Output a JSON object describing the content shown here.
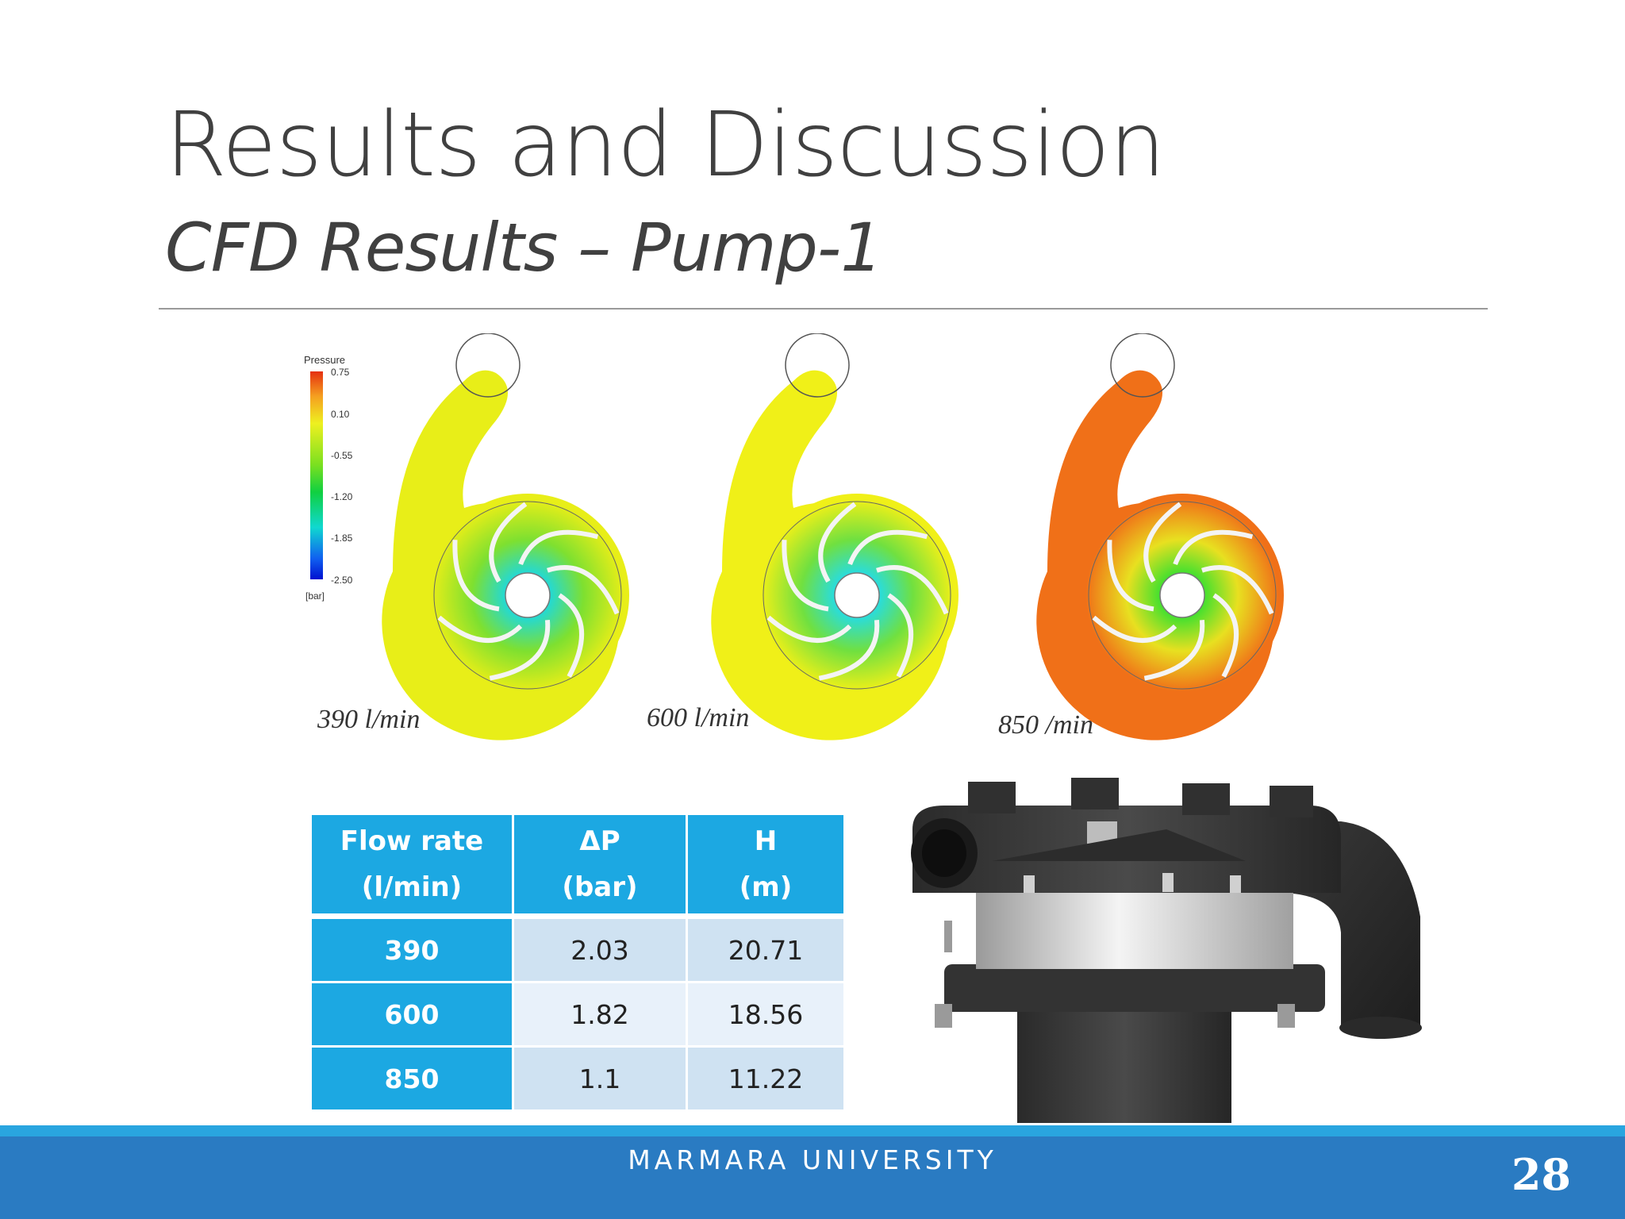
{
  "slide": {
    "title": "Results and Discussion",
    "subtitle": "CFD Results – Pump-1",
    "page_number": "28"
  },
  "cfd_figure": {
    "legend_title": "Pressure",
    "legend_ticks": [
      "0.75",
      "0.10",
      "-0.55",
      "-1.20",
      "-1.85",
      "-2.50"
    ],
    "legend_unit": "[bar]",
    "panels": [
      {
        "label": "390 l/min",
        "pressure_level": "low",
        "outer_color": "#e8ee18",
        "mid_color": "#7ee030",
        "inner_color": "#18d8e8"
      },
      {
        "label": "600 l/min",
        "pressure_level": "medium",
        "outer_color": "#f0f018",
        "mid_color": "#70e040",
        "inner_color": "#20dcf0"
      },
      {
        "label": "850 /min",
        "pressure_level": "high",
        "outer_color": "#f07018",
        "mid_color": "#e8e020",
        "inner_color": "#30e030"
      }
    ]
  },
  "table": {
    "headers": [
      {
        "line1": "Flow rate",
        "line2": "(l/min)"
      },
      {
        "line1": "ΔP",
        "line2": "(bar)"
      },
      {
        "line1": "H",
        "line2": "(m)"
      }
    ],
    "rows": [
      {
        "flow": "390",
        "dp": "2.03",
        "h": "20.71"
      },
      {
        "flow": "600",
        "dp": "1.82",
        "h": "18.56"
      },
      {
        "flow": "850",
        "dp": "1.1",
        "h": "11.22"
      }
    ]
  },
  "footer": {
    "institution": "MARMARA UNIVERSITY"
  },
  "colors": {
    "accent_blue": "#1ca8e2",
    "footer_blue": "#2a7bc2",
    "table_odd": "#cfe2f2",
    "table_even": "#e8f1fa"
  }
}
